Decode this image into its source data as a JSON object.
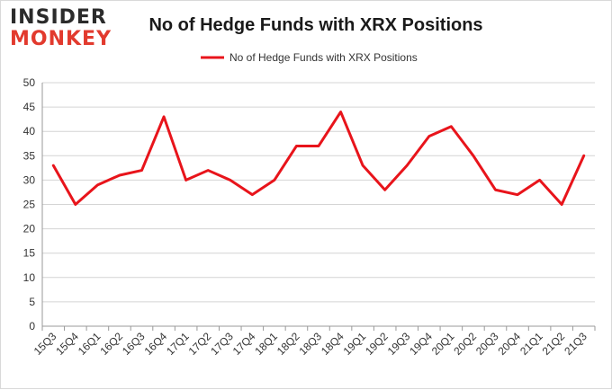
{
  "brand": {
    "line1": "INSIDER",
    "line2": "MONKEY"
  },
  "colors": {
    "series": "#e8141b",
    "grid": "#d4d4d4",
    "axis": "#999999",
    "brand_red": "#e23a2e"
  },
  "chart_data": {
    "type": "line",
    "title": "No of Hedge Funds with XRX Positions",
    "legend_position": "top",
    "grid": true,
    "ylim": [
      0,
      50
    ],
    "yticks": [
      0,
      5,
      10,
      15,
      20,
      25,
      30,
      35,
      40,
      45,
      50
    ],
    "categories": [
      "15Q3",
      "15Q4",
      "16Q1",
      "16Q2",
      "16Q3",
      "16Q4",
      "17Q1",
      "17Q2",
      "17Q3",
      "17Q4",
      "18Q1",
      "18Q2",
      "18Q3",
      "18Q4",
      "19Q1",
      "19Q2",
      "19Q3",
      "19Q4",
      "20Q1",
      "20Q2",
      "20Q3",
      "20Q4",
      "21Q1",
      "21Q2",
      "21Q3"
    ],
    "series": [
      {
        "name": "No of Hedge Funds with XRX Positions",
        "values": [
          33,
          25,
          29,
          31,
          32,
          43,
          30,
          32,
          30,
          27,
          30,
          37,
          37,
          44,
          33,
          28,
          33,
          39,
          41,
          35,
          28,
          27,
          30,
          25,
          35
        ]
      }
    ]
  }
}
